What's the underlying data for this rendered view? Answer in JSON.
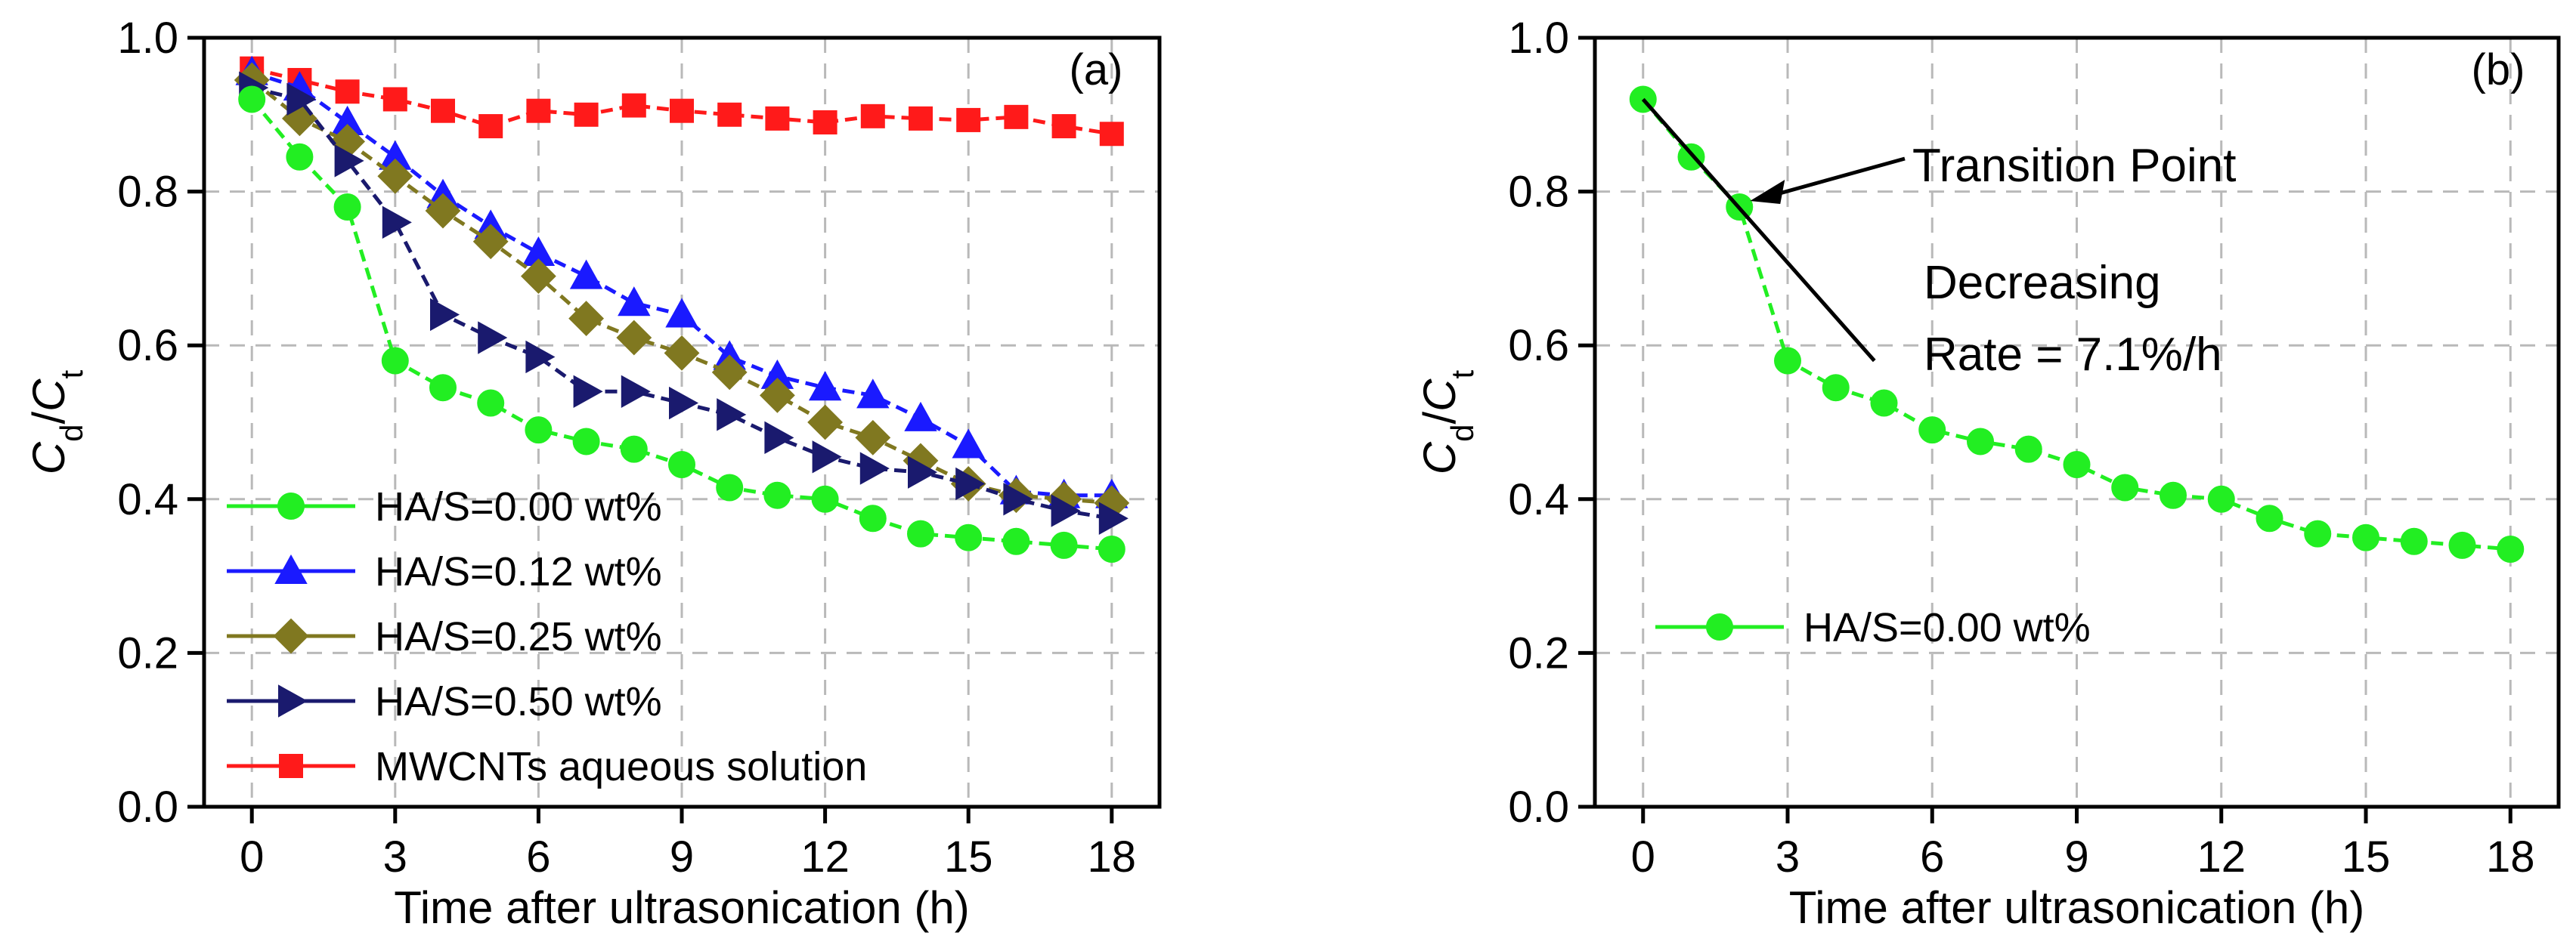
{
  "chart_data": [
    {
      "type": "line",
      "panel_tag": "(a)",
      "xlabel": "Time after ultrasonication (h)",
      "ylabel": {
        "main": "C",
        "sub1": "d",
        "slash": "/",
        "main2": "C",
        "sub2": "t"
      },
      "xlim": [
        -1,
        19
      ],
      "ylim": [
        0,
        1.0
      ],
      "xticks": [
        0,
        3,
        6,
        9,
        12,
        15,
        18
      ],
      "yticks": [
        "0.0",
        "0.2",
        "0.4",
        "0.6",
        "0.8",
        "1.0"
      ],
      "grid": true,
      "legend_position": "bottom-left",
      "x": [
        0,
        1,
        2,
        3,
        4,
        5,
        6,
        7,
        8,
        9,
        10,
        11,
        12,
        13,
        14,
        15,
        16,
        17,
        18
      ],
      "series": [
        {
          "name": "MWCNTs aqueous solution",
          "color": "#ff1a1a",
          "marker": "square",
          "values": [
            0.96,
            0.945,
            0.93,
            0.92,
            0.905,
            0.885,
            0.905,
            0.9,
            0.912,
            0.905,
            0.9,
            0.895,
            0.89,
            0.898,
            0.895,
            0.893,
            0.897,
            0.885,
            0.875
          ]
        },
        {
          "name": "HA/S=0.12 wt%",
          "color": "#1a1aff",
          "marker": "triangle-up",
          "values": [
            0.955,
            0.935,
            0.89,
            0.845,
            0.795,
            0.755,
            0.72,
            0.69,
            0.655,
            0.64,
            0.585,
            0.56,
            0.545,
            0.535,
            0.505,
            0.47,
            0.41,
            0.405,
            0.405
          ]
        },
        {
          "name": "HA/S=0.25 wt%",
          "color": "#807820",
          "marker": "diamond",
          "values": [
            0.945,
            0.895,
            0.865,
            0.82,
            0.775,
            0.735,
            0.69,
            0.635,
            0.61,
            0.59,
            0.565,
            0.535,
            0.5,
            0.48,
            0.45,
            0.42,
            0.405,
            0.4,
            0.395
          ]
        },
        {
          "name": "HA/S=0.50 wt%",
          "color": "#1a1a6e",
          "marker": "triangle-right",
          "values": [
            0.935,
            0.92,
            0.84,
            0.76,
            0.64,
            0.61,
            0.585,
            0.54,
            0.54,
            0.525,
            0.51,
            0.48,
            0.455,
            0.44,
            0.435,
            0.42,
            0.4,
            0.385,
            0.375
          ]
        },
        {
          "name": "HA/S=0.00 wt%",
          "color": "#22ee22",
          "marker": "circle",
          "values": [
            0.92,
            0.845,
            0.78,
            0.58,
            0.545,
            0.525,
            0.49,
            0.475,
            0.465,
            0.445,
            0.415,
            0.405,
            0.4,
            0.375,
            0.355,
            0.35,
            0.345,
            0.34,
            0.335
          ]
        }
      ],
      "legend_order": [
        "HA/S=0.00 wt%",
        "HA/S=0.12 wt%",
        "HA/S=0.25 wt%",
        "HA/S=0.50 wt%",
        "MWCNTs aqueous solution"
      ]
    },
    {
      "type": "line",
      "panel_tag": "(b)",
      "xlabel": "Time after ultrasonication (h)",
      "ylabel": {
        "main": "C",
        "sub1": "d",
        "slash": "/",
        "main2": "C",
        "sub2": "t"
      },
      "xlim": [
        -1,
        19
      ],
      "ylim": [
        0,
        1.0
      ],
      "xticks": [
        0,
        3,
        6,
        9,
        12,
        15,
        18
      ],
      "yticks": [
        "0.0",
        "0.2",
        "0.4",
        "0.6",
        "0.8",
        "1.0"
      ],
      "grid": true,
      "legend_position": "lower-left",
      "x": [
        0,
        1,
        2,
        3,
        4,
        5,
        6,
        7,
        8,
        9,
        10,
        11,
        12,
        13,
        14,
        15,
        16,
        17,
        18
      ],
      "series": [
        {
          "name": "HA/S=0.00 wt%",
          "color": "#22ee22",
          "marker": "circle",
          "values": [
            0.92,
            0.845,
            0.78,
            0.58,
            0.545,
            0.525,
            0.49,
            0.475,
            0.465,
            0.445,
            0.415,
            0.405,
            0.4,
            0.375,
            0.355,
            0.35,
            0.345,
            0.34,
            0.335
          ]
        }
      ],
      "fit_line": {
        "x": [
          0,
          4.8
        ],
        "y": [
          0.92,
          0.58
        ]
      },
      "annotations": {
        "transition_point": "Transition Point",
        "arrow_target": {
          "x": 2,
          "y": 0.78
        },
        "rate_line1": "Decreasing",
        "rate_line2": "Rate = 7.1%/h"
      }
    }
  ]
}
